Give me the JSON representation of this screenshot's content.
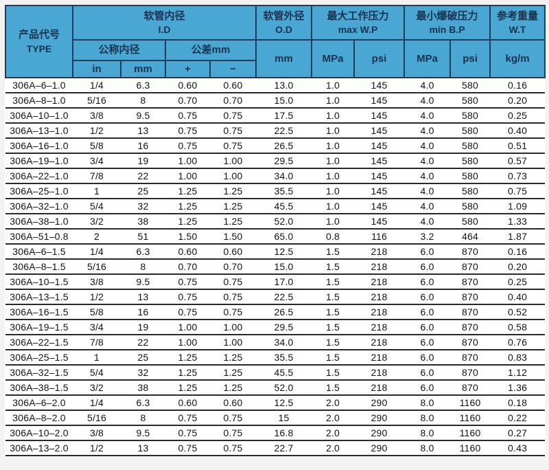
{
  "table": {
    "header": {
      "type_cn": "产品代号",
      "type_en": "TYPE",
      "id_cn": "软管内径",
      "id_en": "I.D",
      "nominal_cn": "公称内径",
      "tolerance_cn": "公差mm",
      "unit_in": "in",
      "unit_mm": "mm",
      "plus": "+",
      "minus": "−",
      "od_cn": "软管外径",
      "od_en": "O.D",
      "od_unit": "mm",
      "wp_cn": "最大工作压力",
      "wp_en": "max W.P",
      "bp_cn": "最小爆破压力",
      "bp_en": "min B.P",
      "wt_cn": "参考重量",
      "wt_en": "W.T",
      "wp_mpa": "MPa",
      "wp_psi": "psi",
      "bp_mpa": "MPa",
      "bp_psi": "psi",
      "wt_unit": "kg/m"
    },
    "column_keys": [
      "type",
      "id-in",
      "id-mm",
      "tol-plus",
      "tol-minus",
      "od-mm",
      "wp-mpa",
      "wp-psi",
      "bp-mpa",
      "bp-psi",
      "wt-kgm"
    ],
    "rows": [
      [
        "306A–6–1.0",
        "1/4",
        "6.3",
        "0.60",
        "0.60",
        "13.0",
        "1.0",
        "145",
        "4.0",
        "580",
        "0.16"
      ],
      [
        "306A–8–1.0",
        "5/16",
        "8",
        "0.70",
        "0.70",
        "15.0",
        "1.0",
        "145",
        "4.0",
        "580",
        "0.20"
      ],
      [
        "306A–10–1.0",
        "3/8",
        "9.5",
        "0.75",
        "0.75",
        "17.5",
        "1.0",
        "145",
        "4.0",
        "580",
        "0.25"
      ],
      [
        "306A–13–1.0",
        "1/2",
        "13",
        "0.75",
        "0.75",
        "22.5",
        "1.0",
        "145",
        "4.0",
        "580",
        "0.40"
      ],
      [
        "306A–16–1.0",
        "5/8",
        "16",
        "0.75",
        "0.75",
        "26.5",
        "1.0",
        "145",
        "4.0",
        "580",
        "0.51"
      ],
      [
        "306A–19–1.0",
        "3/4",
        "19",
        "1.00",
        "1.00",
        "29.5",
        "1.0",
        "145",
        "4.0",
        "580",
        "0.57"
      ],
      [
        "306A–22–1.0",
        "7/8",
        "22",
        "1.00",
        "1.00",
        "34.0",
        "1.0",
        "145",
        "4.0",
        "580",
        "0.73"
      ],
      [
        "306A–25–1.0",
        "1",
        "25",
        "1.25",
        "1.25",
        "35.5",
        "1.0",
        "145",
        "4.0",
        "580",
        "0.75"
      ],
      [
        "306A–32–1.0",
        "5/4",
        "32",
        "1.25",
        "1.25",
        "45.5",
        "1.0",
        "145",
        "4.0",
        "580",
        "1.09"
      ],
      [
        "306A–38–1.0",
        "3/2",
        "38",
        "1.25",
        "1.25",
        "52.0",
        "1.0",
        "145",
        "4.0",
        "580",
        "1.33"
      ],
      [
        "306A–51–0.8",
        "2",
        "51",
        "1.50",
        "1.50",
        "65.0",
        "0.8",
        "116",
        "3.2",
        "464",
        "1.87"
      ],
      [
        "306A–6–1.5",
        "1/4",
        "6.3",
        "0.60",
        "0.60",
        "12.5",
        "1.5",
        "218",
        "6.0",
        "870",
        "0.16"
      ],
      [
        "306A–8–1.5",
        "5/16",
        "8",
        "0.70",
        "0.70",
        "15.0",
        "1.5",
        "218",
        "6.0",
        "870",
        "0.20"
      ],
      [
        "306A–10–1.5",
        "3/8",
        "9.5",
        "0.75",
        "0.75",
        "17.0",
        "1.5",
        "218",
        "6.0",
        "870",
        "0.25"
      ],
      [
        "306A–13–1.5",
        "1/2",
        "13",
        "0.75",
        "0.75",
        "22.5",
        "1.5",
        "218",
        "6.0",
        "870",
        "0.40"
      ],
      [
        "306A–16–1.5",
        "5/8",
        "16",
        "0.75",
        "0.75",
        "26.5",
        "1.5",
        "218",
        "6.0",
        "870",
        "0.52"
      ],
      [
        "306A–19–1.5",
        "3/4",
        "19",
        "1.00",
        "1.00",
        "29.5",
        "1.5",
        "218",
        "6.0",
        "870",
        "0.58"
      ],
      [
        "306A–22–1.5",
        "7/8",
        "22",
        "1.00",
        "1.00",
        "34.0",
        "1.5",
        "218",
        "6.0",
        "870",
        "0.76"
      ],
      [
        "306A–25–1.5",
        "1",
        "25",
        "1.25",
        "1.25",
        "35.5",
        "1.5",
        "218",
        "6.0",
        "870",
        "0.83"
      ],
      [
        "306A–32–1.5",
        "5/4",
        "32",
        "1.25",
        "1.25",
        "45.5",
        "1.5",
        "218",
        "6.0",
        "870",
        "1.12"
      ],
      [
        "306A–38–1.5",
        "3/2",
        "38",
        "1.25",
        "1.25",
        "52.0",
        "1.5",
        "218",
        "6.0",
        "870",
        "1.36"
      ],
      [
        "306A–6–2.0",
        "1/4",
        "6.3",
        "0.60",
        "0.60",
        "12.5",
        "2.0",
        "290",
        "8.0",
        "1160",
        "0.18"
      ],
      [
        "306A–8–2.0",
        "5/16",
        "8",
        "0.75",
        "0.75",
        "15",
        "2.0",
        "290",
        "8.0",
        "1160",
        "0.22"
      ],
      [
        "306A–10–2.0",
        "3/8",
        "9.5",
        "0.75",
        "0.75",
        "16.8",
        "2.0",
        "290",
        "8.0",
        "1160",
        "0.27"
      ],
      [
        "306A–13–2.0",
        "1/2",
        "13",
        "0.75",
        "0.75",
        "22.7",
        "2.0",
        "290",
        "8.0",
        "1160",
        "0.43"
      ]
    ]
  },
  "colors": {
    "header_bg": "#4aa6d2",
    "header_text": "#16334f",
    "header_border": "#1d3d5c",
    "row_line": "#2a2a2a",
    "page_bg": "#f4f3f3"
  }
}
